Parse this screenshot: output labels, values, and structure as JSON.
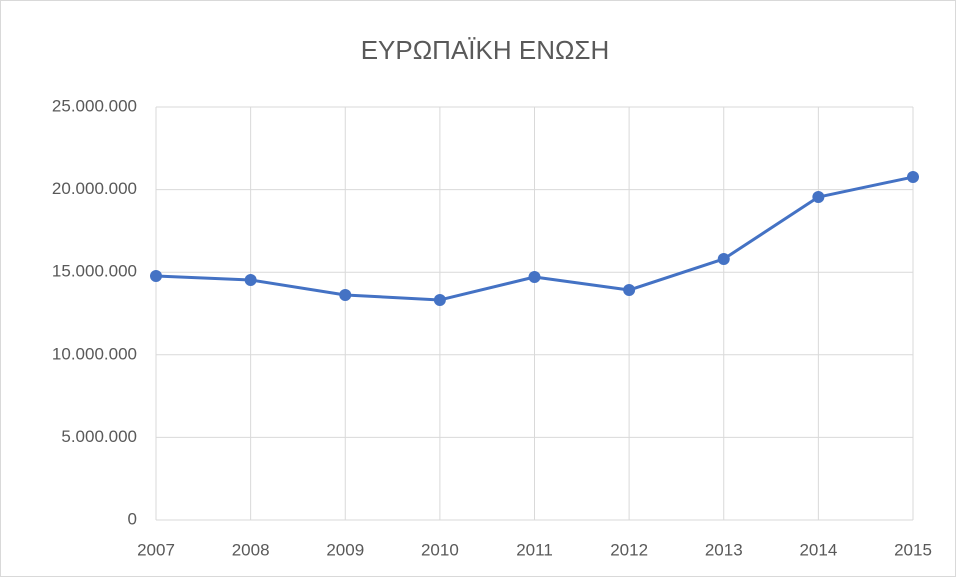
{
  "chart_data": {
    "type": "line",
    "title": "ΕΥΡΩΠΑΪΚΗ ΕΝΩΣΗ",
    "x": [
      2007,
      2008,
      2009,
      2010,
      2011,
      2012,
      2013,
      2014,
      2015
    ],
    "series": [
      {
        "name": "ΕΥΡΩΠΑΪΚΗ ΕΝΩΣΗ",
        "color": "#4472c4",
        "values": [
          14770000,
          14530000,
          13620000,
          13320000,
          14710000,
          13920000,
          15800000,
          19550000,
          20760000
        ]
      }
    ],
    "xlim": [
      2007,
      2015
    ],
    "xticks": [
      2007,
      2008,
      2009,
      2010,
      2011,
      2012,
      2013,
      2014,
      2015
    ],
    "ylim": [
      0,
      25000000
    ],
    "yticks": [
      0,
      {
        "value": 5000000,
        "label": "5.000.000"
      },
      {
        "value": 10000000,
        "label": "10.000.000"
      },
      {
        "value": 15000000,
        "label": "15.000.000"
      },
      {
        "value": 20000000,
        "label": "20.000.000"
      },
      {
        "value": 25000000,
        "label": "25.000.000"
      }
    ],
    "grid": true
  }
}
